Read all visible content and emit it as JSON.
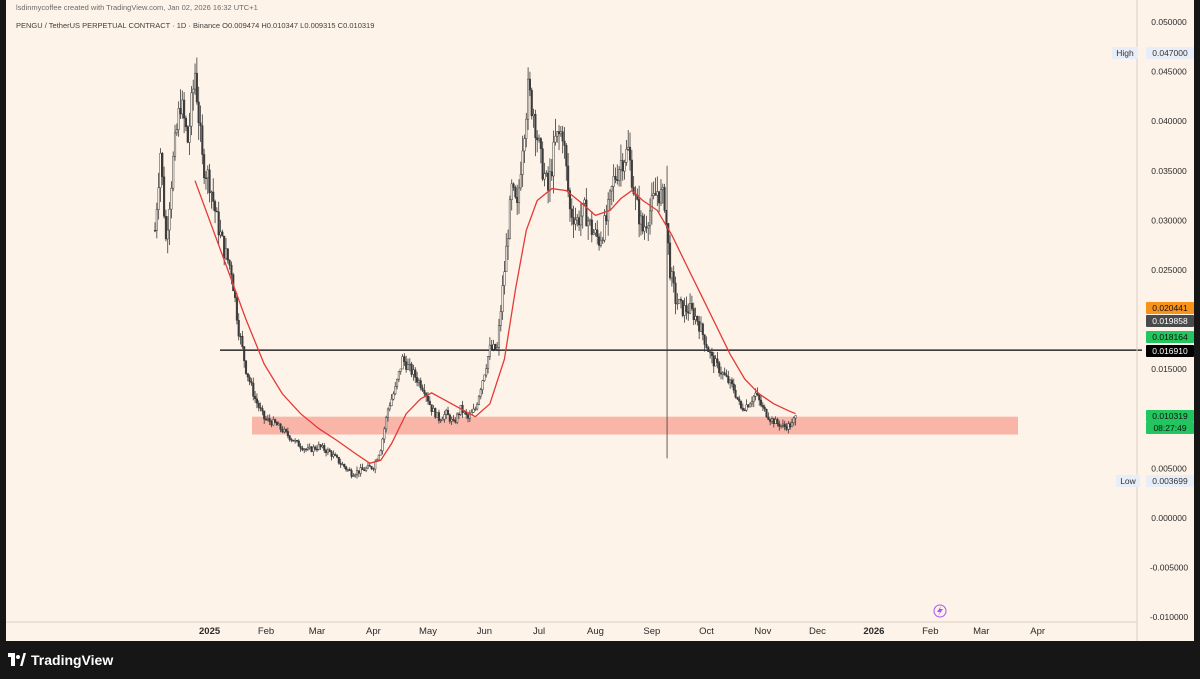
{
  "attribution": "lsdinmycoffee created with TradingView.com, Jan 02, 2026 16:32 UTC+1",
  "legend": "PENGU / TetherUS PERPETUAL CONTRACT · 1D · Binance  O0.009474  H0.010347  L0.009315  C0.010319",
  "brand": "TradingView",
  "colors": {
    "background": "#fdf3e8",
    "candle": "#3a3a3a",
    "ma_line": "#e53935",
    "support_zone": "#f8a99c",
    "resistance_line": "#000000",
    "last_price": "#22c55e",
    "tag_orange": "#f7931a",
    "tag_dark": "#4a4a4a",
    "tag_black": "#000000"
  },
  "price_tags": {
    "high_label": "High",
    "high_value": "0.047000",
    "low_label": "Low",
    "low_value": "0.003699",
    "orange_value": "0.020441",
    "dark_value": "0.019858",
    "green_value": "0.018164",
    "black_value": "0.016910",
    "last_value": "0.010319",
    "countdown": "08:27:49"
  },
  "chart_data": {
    "type": "candlestick",
    "symbol": "PENGU / TetherUS PERPETUAL CONTRACT",
    "interval": "1D",
    "exchange": "Binance",
    "ohlc_last": {
      "open": 0.009474,
      "high": 0.010347,
      "low": 0.009315,
      "close": 0.010319
    },
    "ylim": [
      -0.01,
      0.05
    ],
    "y_ticks": [
      "0.050000",
      "0.045000",
      "0.040000",
      "0.035000",
      "0.030000",
      "0.025000",
      "0.015000",
      "0.005000",
      "0.000000",
      "-0.005000",
      "-0.010000"
    ],
    "x_tick_labels": [
      "2025",
      "Feb",
      "Mar",
      "Apr",
      "May",
      "Jun",
      "Jul",
      "Aug",
      "Sep",
      "Oct",
      "Nov",
      "Dec",
      "2026",
      "Feb",
      "Mar",
      "Apr"
    ],
    "price_path": [
      [
        0,
        0.029
      ],
      [
        3,
        0.037
      ],
      [
        6,
        0.028
      ],
      [
        10,
        0.036
      ],
      [
        14,
        0.042
      ],
      [
        18,
        0.038
      ],
      [
        22,
        0.045
      ],
      [
        26,
        0.036
      ],
      [
        30,
        0.034
      ],
      [
        34,
        0.03
      ],
      [
        38,
        0.027
      ],
      [
        42,
        0.025
      ],
      [
        46,
        0.019
      ],
      [
        50,
        0.015
      ],
      [
        55,
        0.012
      ],
      [
        60,
        0.01
      ],
      [
        66,
        0.0095
      ],
      [
        72,
        0.0085
      ],
      [
        78,
        0.0075
      ],
      [
        84,
        0.0068
      ],
      [
        90,
        0.0072
      ],
      [
        96,
        0.0066
      ],
      [
        102,
        0.0055
      ],
      [
        108,
        0.0045
      ],
      [
        114,
        0.0048
      ],
      [
        120,
        0.0052
      ],
      [
        124,
        0.007
      ],
      [
        128,
        0.011
      ],
      [
        132,
        0.013
      ],
      [
        136,
        0.016
      ],
      [
        140,
        0.015
      ],
      [
        144,
        0.014
      ],
      [
        148,
        0.013
      ],
      [
        152,
        0.011
      ],
      [
        156,
        0.01
      ],
      [
        160,
        0.0105
      ],
      [
        164,
        0.0095
      ],
      [
        168,
        0.011
      ],
      [
        172,
        0.01
      ],
      [
        176,
        0.011
      ],
      [
        180,
        0.014
      ],
      [
        184,
        0.017
      ],
      [
        188,
        0.017
      ],
      [
        190,
        0.021
      ],
      [
        193,
        0.027
      ],
      [
        196,
        0.033
      ],
      [
        199,
        0.031
      ],
      [
        202,
        0.038
      ],
      [
        205,
        0.043
      ],
      [
        208,
        0.041
      ],
      [
        212,
        0.036
      ],
      [
        216,
        0.033
      ],
      [
        220,
        0.038
      ],
      [
        224,
        0.039
      ],
      [
        228,
        0.031
      ],
      [
        232,
        0.03
      ],
      [
        236,
        0.031
      ],
      [
        240,
        0.029
      ],
      [
        244,
        0.028
      ],
      [
        248,
        0.03
      ],
      [
        252,
        0.034
      ],
      [
        256,
        0.036
      ],
      [
        260,
        0.037
      ],
      [
        264,
        0.032
      ],
      [
        268,
        0.029
      ],
      [
        272,
        0.031
      ],
      [
        276,
        0.033
      ],
      [
        280,
        0.032
      ],
      [
        283,
        0.025
      ],
      [
        286,
        0.022
      ],
      [
        290,
        0.021
      ],
      [
        294,
        0.021
      ],
      [
        298,
        0.02
      ],
      [
        302,
        0.018
      ],
      [
        306,
        0.016
      ],
      [
        310,
        0.015
      ],
      [
        314,
        0.014
      ],
      [
        318,
        0.013
      ],
      [
        322,
        0.011
      ],
      [
        326,
        0.0115
      ],
      [
        330,
        0.0125
      ],
      [
        334,
        0.011
      ],
      [
        338,
        0.01
      ],
      [
        342,
        0.0095
      ],
      [
        346,
        0.0092
      ],
      [
        350,
        0.0094
      ],
      [
        352,
        0.0103
      ]
    ],
    "moving_average": [
      [
        22,
        0.034
      ],
      [
        30,
        0.03
      ],
      [
        40,
        0.025
      ],
      [
        50,
        0.02
      ],
      [
        60,
        0.0155
      ],
      [
        70,
        0.0125
      ],
      [
        80,
        0.0105
      ],
      [
        90,
        0.009
      ],
      [
        100,
        0.0078
      ],
      [
        110,
        0.0065
      ],
      [
        118,
        0.0055
      ],
      [
        124,
        0.0058
      ],
      [
        130,
        0.0075
      ],
      [
        138,
        0.0105
      ],
      [
        146,
        0.012
      ],
      [
        152,
        0.0126
      ],
      [
        160,
        0.0118
      ],
      [
        168,
        0.011
      ],
      [
        176,
        0.0102
      ],
      [
        184,
        0.0115
      ],
      [
        192,
        0.016
      ],
      [
        198,
        0.023
      ],
      [
        204,
        0.029
      ],
      [
        210,
        0.032
      ],
      [
        218,
        0.0332
      ],
      [
        226,
        0.033
      ],
      [
        234,
        0.0318
      ],
      [
        242,
        0.0305
      ],
      [
        250,
        0.031
      ],
      [
        256,
        0.0322
      ],
      [
        262,
        0.033
      ],
      [
        268,
        0.032
      ],
      [
        276,
        0.031
      ],
      [
        284,
        0.0285
      ],
      [
        292,
        0.0255
      ],
      [
        300,
        0.0225
      ],
      [
        308,
        0.0195
      ],
      [
        316,
        0.0165
      ],
      [
        324,
        0.014
      ],
      [
        332,
        0.0125
      ],
      [
        340,
        0.0115
      ],
      [
        348,
        0.0108
      ],
      [
        352,
        0.0105
      ]
    ],
    "support_zone": {
      "bottom": 0.0084,
      "top": 0.0102
    },
    "resistance_line": 0.01691,
    "wick_spike": {
      "high": 0.0355,
      "low": 0.006
    }
  }
}
